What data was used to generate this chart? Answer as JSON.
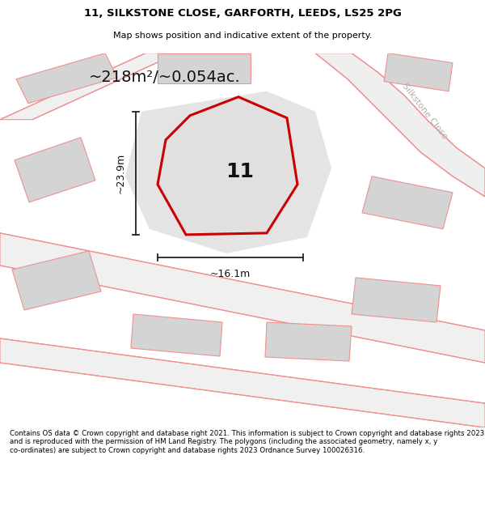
{
  "title_line1": "11, SILKSTONE CLOSE, GARFORTH, LEEDS, LS25 2PG",
  "title_line2": "Map shows position and indicative extent of the property.",
  "area_text": "~218m²/~0.054ac.",
  "dim_width": "~16.1m",
  "dim_height": "~23.9m",
  "plot_label": "11",
  "road_label": "Silkstone Close",
  "footer_text": "Contains OS data © Crown copyright and database right 2021. This information is subject to Crown copyright and database rights 2023 and is reproduced with the permission of HM Land Registry. The polygons (including the associated geometry, namely x, y co-ordinates) are subject to Crown copyright and database rights 2023 Ordnance Survey 100026316.",
  "bg_color": "#ffffff",
  "map_bg": "#f2f2f2",
  "plot_fill": "#e0e0e0",
  "plot_edge": "#cc0000",
  "road_line_color": "#f09090",
  "building_fill": "#d4d4d4",
  "building_edge": "#f09090",
  "dim_line_color": "#222222",
  "road_label_color": "#b0b0b0",
  "title_color": "#000000",
  "footer_color": "#000000",
  "road_fill": "#ebebeb"
}
